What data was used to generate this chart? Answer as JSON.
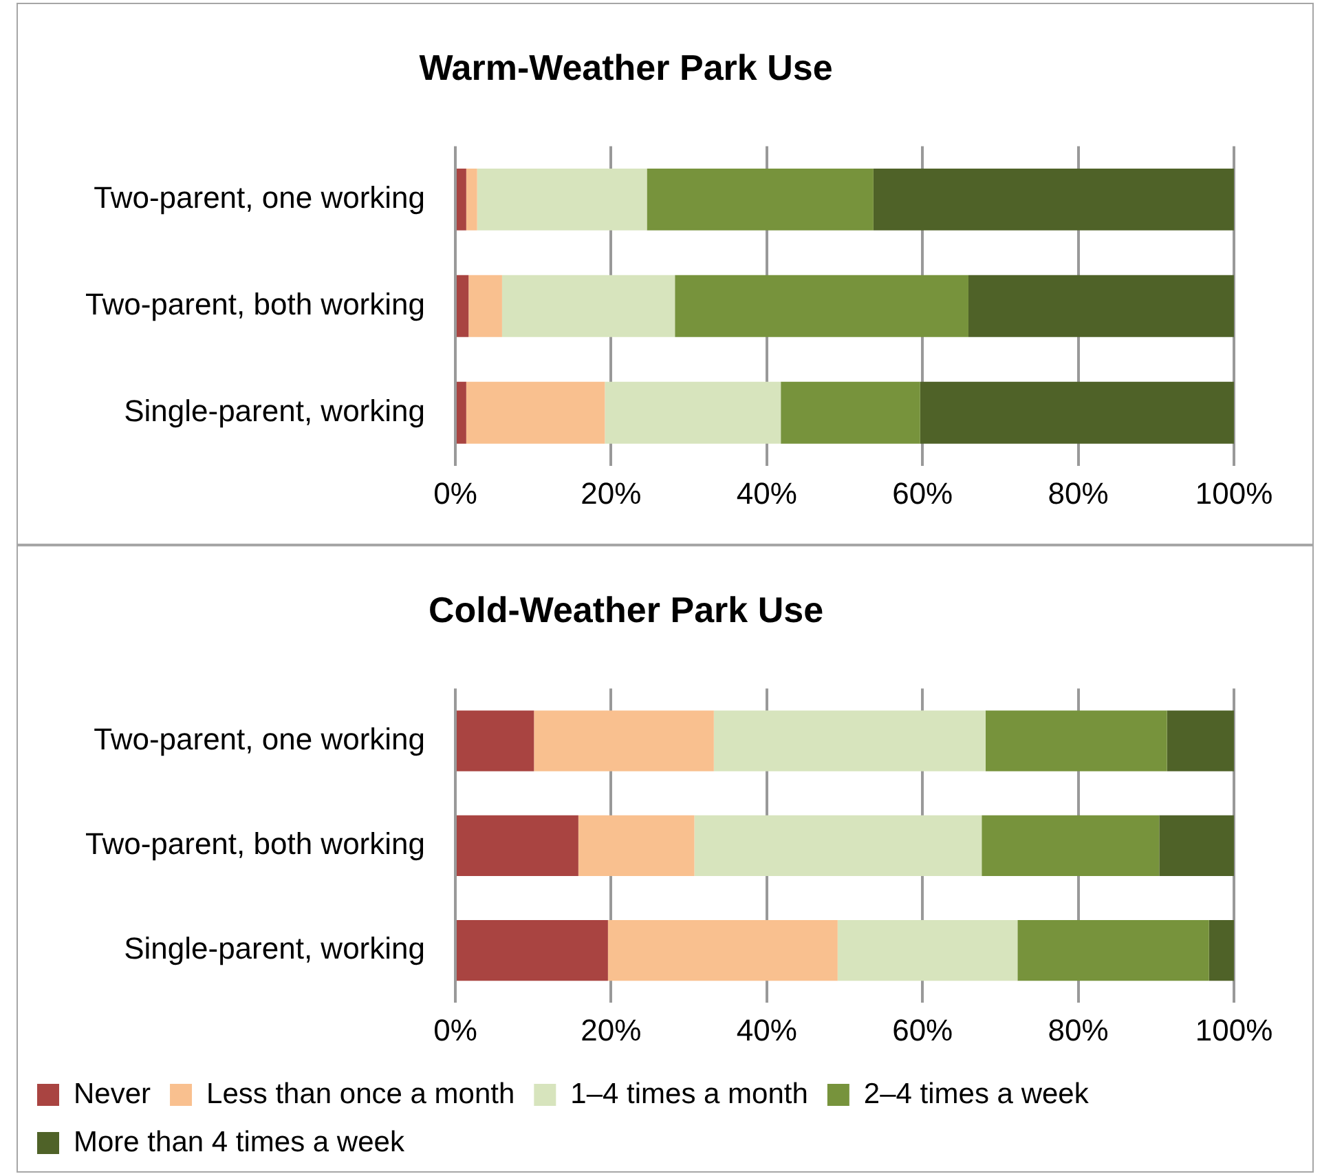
{
  "chart_data": [
    {
      "type": "bar",
      "orientation": "horizontal",
      "stacked": true,
      "title": "Warm-Weather Park Use",
      "categories": [
        "Two-parent, one working",
        "Two-parent, both working",
        "Single-parent, working"
      ],
      "series": [
        {
          "color": "#a94441",
          "values": [
            1.4,
            1.7,
            1.4
          ]
        },
        {
          "color": "#f9c08f",
          "values": [
            1.4,
            4.3,
            17.8
          ]
        },
        {
          "color": "#d7e4bd",
          "values": [
            21.8,
            22.2,
            22.6
          ]
        },
        {
          "color": "#77933c",
          "values": [
            29.1,
            37.7,
            17.9
          ]
        },
        {
          "color": "#4f6228",
          "values": [
            46.3,
            34.1,
            40.3
          ]
        }
      ],
      "xlim": [
        0,
        100
      ],
      "xticks": [
        {
          "value": 0,
          "label": "0%"
        },
        {
          "value": 20,
          "label": "20%"
        },
        {
          "value": 40,
          "label": "40%"
        },
        {
          "value": 60,
          "label": "60%"
        },
        {
          "value": 80,
          "label": "80%"
        },
        {
          "value": 100,
          "label": "100%"
        }
      ],
      "grid": "x",
      "legend": false
    },
    {
      "type": "bar",
      "orientation": "horizontal",
      "stacked": true,
      "title": "Cold-Weather Park Use",
      "categories": [
        "Two-parent, one working",
        "Two-parent, both working",
        "Single-parent, working"
      ],
      "series": [
        {
          "name": "Never",
          "color": "#a94441",
          "values": [
            10.1,
            15.8,
            19.6
          ]
        },
        {
          "name": "Less than once a month",
          "color": "#f9c08f",
          "values": [
            23.1,
            14.9,
            29.5
          ]
        },
        {
          "name": "1–4 times a month",
          "color": "#d7e4bd",
          "values": [
            34.9,
            36.9,
            23.1
          ]
        },
        {
          "name": "2–4 times a week",
          "color": "#77933c",
          "values": [
            23.3,
            22.8,
            24.6
          ]
        },
        {
          "name": "More than 4 times a week",
          "color": "#4f6228",
          "values": [
            8.6,
            9.6,
            3.2
          ]
        }
      ],
      "xlim": [
        0,
        100
      ],
      "xticks": [
        {
          "value": 0,
          "label": "0%"
        },
        {
          "value": 20,
          "label": "20%"
        },
        {
          "value": 40,
          "label": "40%"
        },
        {
          "value": 60,
          "label": "60%"
        },
        {
          "value": 80,
          "label": "80%"
        },
        {
          "value": 100,
          "label": "100%"
        }
      ],
      "grid": "x",
      "legend": "bottom"
    }
  ]
}
